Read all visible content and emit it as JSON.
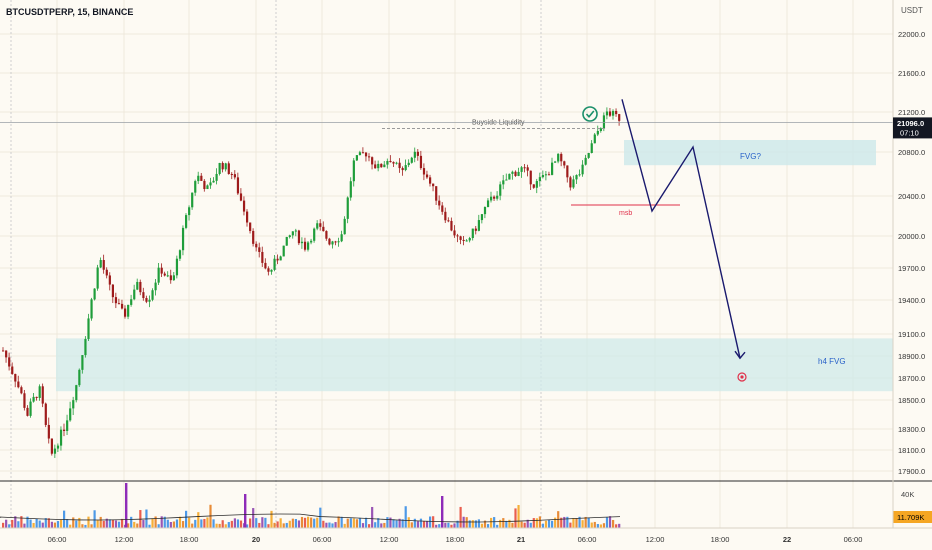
{
  "header": {
    "symbol_label": "BTCUSDTPERP, 15, BINANCE",
    "currency": "USDT"
  },
  "colors": {
    "background": "#fdfaf3",
    "up": "#26a69a",
    "candle_up": "#1f9d3a",
    "candle_down": "#9e1b1b",
    "fvg_zone": "#cfe9ea",
    "path_line": "#1a1a6e",
    "msb_line": "#e0304a",
    "price_tag": "#131722",
    "volume_label_bg": "#f5a623"
  },
  "chart_data": {
    "type": "candlestick",
    "y_axis": {
      "ticks": [
        17900.0,
        18100.0,
        18300.0,
        18500.0,
        18700.0,
        18900.0,
        19100.0,
        19400.0,
        19700.0,
        20000.0,
        20400.0,
        20800.0,
        21200.0,
        21600.0,
        22000.0
      ],
      "tick_labels": [
        "17900.0",
        "18100.0",
        "18300.0",
        "18500.0",
        "18700.0",
        "18900.0",
        "19100.0",
        "19400.0",
        "19700.0",
        "20000.0",
        "20400.0",
        "20800.0",
        "21200.0",
        "21600.0",
        "22000.0"
      ]
    },
    "x_axis": {
      "ticks": [
        "06:00",
        "12:00",
        "18:00",
        "20",
        "06:00",
        "12:00",
        "18:00",
        "21",
        "06:00",
        "12:00",
        "18:00",
        "22",
        "06:00"
      ]
    },
    "price_series_anchors": [
      18950,
      18700,
      18400,
      18600,
      18050,
      18300,
      18600,
      19200,
      19800,
      19450,
      19250,
      19550,
      19400,
      19700,
      19550,
      20100,
      20600,
      20450,
      20700,
      20600,
      20250,
      19850,
      19650,
      19850,
      20050,
      19900,
      20100,
      19950,
      20000,
      20700,
      20800,
      20650,
      20750,
      20600,
      20800,
      20600,
      20350,
      20100,
      19900,
      20050,
      20300,
      20450,
      20600,
      20650,
      20500,
      20600,
      20750,
      20500,
      20650,
      20950,
      21200,
      21140
    ],
    "current_price": {
      "value": 21096.0,
      "label": "21096.0",
      "countdown": "07:10"
    },
    "annotations": {
      "buyside_liquidity": {
        "label": "Buyside Liquidity",
        "level": 21085
      },
      "msb": {
        "label": "msb",
        "level": 20350
      },
      "fvg_upper": {
        "label": "FVG?",
        "top": 20920,
        "bottom": 20680
      },
      "h4_fvg": {
        "label": "h4 FVG",
        "top": 19060,
        "bottom": 18580
      },
      "projected_path": [
        21330,
        20250,
        20850,
        18880
      ]
    },
    "volume": {
      "max_label": "40K",
      "current_label": "11.709K"
    }
  }
}
